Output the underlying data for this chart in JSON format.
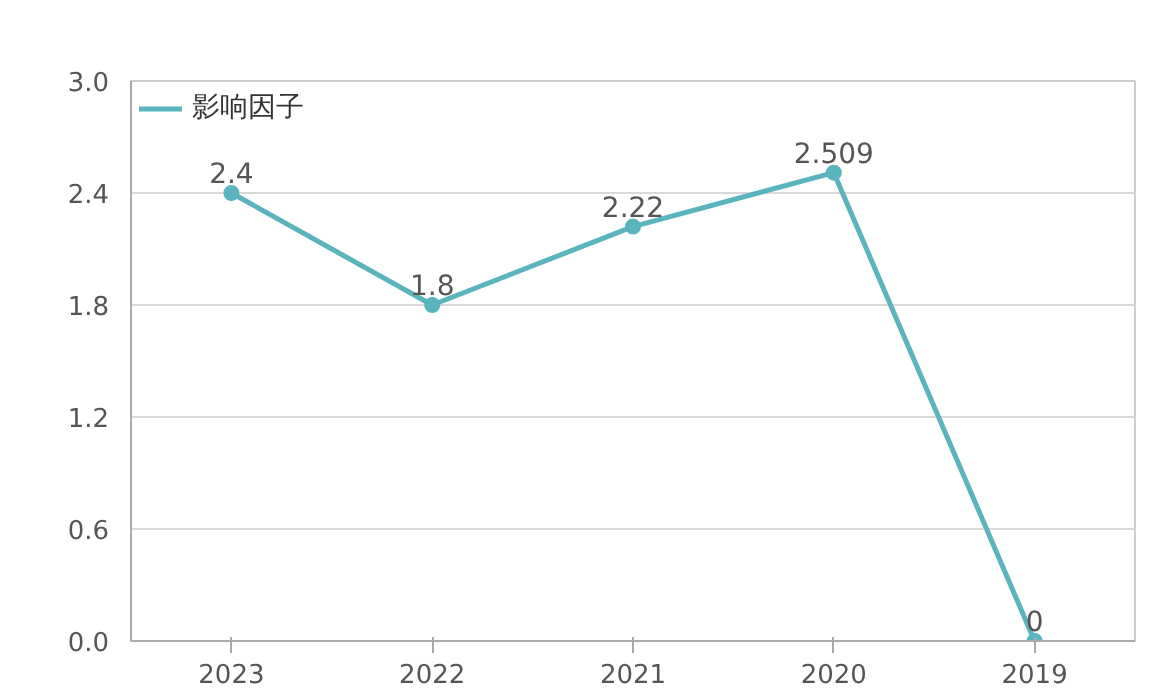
{
  "chart_data": {
    "type": "line",
    "categories": [
      "2023",
      "2022",
      "2021",
      "2020",
      "2019"
    ],
    "series": [
      {
        "name": "影响因子",
        "color": "#5ab4bd",
        "values": [
          2.4,
          1.8,
          2.22,
          2.509,
          0
        ]
      }
    ],
    "ylim": [
      0,
      3
    ],
    "yticks": [
      {
        "value": 0,
        "label": "0.0"
      },
      {
        "value": 0.6,
        "label": "0.6"
      },
      {
        "value": 1.2,
        "label": "1.2"
      },
      {
        "value": 1.8,
        "label": "1.8"
      },
      {
        "value": 2.4,
        "label": "2.4"
      },
      {
        "value": 3,
        "label": "3.0"
      }
    ],
    "grid": "y",
    "legend": "top left",
    "marker": "circle",
    "line_style": "solid",
    "data_labels": true
  }
}
